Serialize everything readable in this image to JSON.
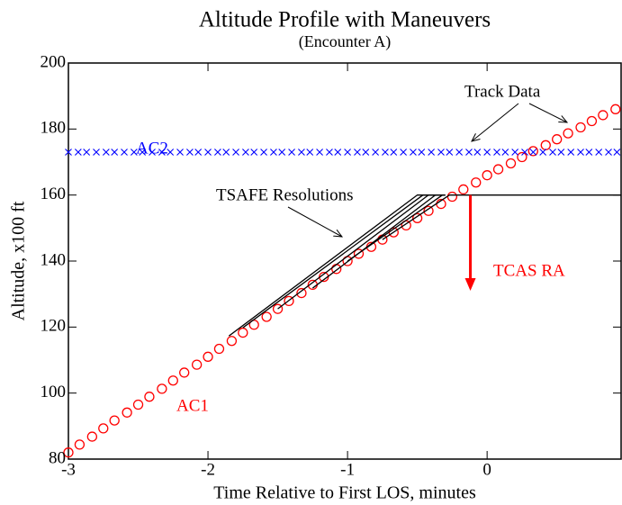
{
  "chart_data": {
    "type": "line",
    "title": "Altitude Profile with Maneuvers",
    "subtitle": "(Encounter A)",
    "x_label": "Time Relative to First LOS, minutes",
    "y_label": "Altitude, x100 ft",
    "xlim": [
      -3,
      0.96
    ],
    "ylim": [
      80,
      200
    ],
    "xticks": [
      -3,
      -2,
      -1,
      0
    ],
    "yticks": [
      80,
      100,
      120,
      140,
      160,
      180,
      200
    ],
    "annotations": {
      "ac1": "AC1",
      "ac2": "AC2",
      "tsafe": "TSAFE Resolutions",
      "track": "Track Data",
      "tcas": "TCAS RA"
    },
    "series": [
      {
        "name": "AC1",
        "color": "#ff0000",
        "marker": "circle",
        "x": [
          -3,
          -2.92,
          -2.83,
          -2.75,
          -2.67,
          -2.58,
          -2.5,
          -2.42,
          -2.33,
          -2.25,
          -2.17,
          -2.08,
          -2,
          -1.92,
          -1.83,
          -1.75,
          -1.67,
          -1.58,
          -1.5,
          -1.42,
          -1.33,
          -1.25,
          -1.17,
          -1.08,
          -1,
          -0.92,
          -0.83,
          -0.75,
          -0.67,
          -0.58,
          -0.5,
          -0.42,
          -0.33,
          -0.25,
          -0.17,
          -0.08,
          0,
          0.08,
          0.17,
          0.25,
          0.33,
          0.42,
          0.5,
          0.58,
          0.67,
          0.75,
          0.83,
          0.92
        ],
        "values": [
          82,
          84.4,
          86.8,
          89.3,
          91.7,
          94.1,
          96.5,
          98.9,
          101.3,
          103.8,
          106.2,
          108.6,
          111,
          113.4,
          115.8,
          118.3,
          120.7,
          123.1,
          125.5,
          127.9,
          130.3,
          132.8,
          135.2,
          137.6,
          140,
          142.2,
          144.3,
          146.5,
          148.7,
          150.8,
          153,
          155.2,
          157.3,
          159.5,
          161.7,
          163.8,
          166,
          167.8,
          169.6,
          171.5,
          173.3,
          175.1,
          176.9,
          178.7,
          180.5,
          182.4,
          184.2,
          186
        ]
      },
      {
        "name": "AC2",
        "color": "#0000ff",
        "marker": "x",
        "x": [
          -3,
          -2.93,
          -2.87,
          -2.8,
          -2.73,
          -2.67,
          -2.6,
          -2.53,
          -2.47,
          -2.4,
          -2.33,
          -2.27,
          -2.2,
          -2.13,
          -2.07,
          -2,
          -1.93,
          -1.87,
          -1.8,
          -1.73,
          -1.67,
          -1.6,
          -1.53,
          -1.47,
          -1.4,
          -1.33,
          -1.27,
          -1.2,
          -1.13,
          -1.07,
          -1,
          -0.93,
          -0.87,
          -0.8,
          -0.73,
          -0.67,
          -0.6,
          -0.53,
          -0.47,
          -0.4,
          -0.33,
          -0.27,
          -0.2,
          -0.13,
          -0.07,
          0,
          0.07,
          0.13,
          0.2,
          0.27,
          0.33,
          0.4,
          0.47,
          0.53,
          0.6,
          0.67,
          0.73,
          0.8,
          0.87,
          0.93
        ],
        "values": [
          173,
          173,
          173,
          173,
          173,
          173,
          173,
          173,
          173,
          173,
          173,
          173,
          173,
          173,
          173,
          173,
          173,
          173,
          173,
          173,
          173,
          173,
          173,
          173,
          173,
          173,
          173,
          173,
          173,
          173,
          173,
          173,
          173,
          173,
          173,
          173,
          173,
          173,
          173,
          173,
          173,
          173,
          173,
          173,
          173,
          173,
          173,
          173,
          173,
          173,
          173,
          173,
          173,
          173,
          173,
          173,
          173,
          173,
          173,
          173
        ]
      },
      {
        "name": "TSAFE 1",
        "color": "#000000",
        "marker": "line",
        "x": [
          -1.85,
          -0.5,
          -0.3
        ],
        "values": [
          117.3,
          160,
          160
        ]
      },
      {
        "name": "TSAFE 2",
        "color": "#000000",
        "marker": "line",
        "x": [
          -1.75,
          -0.46,
          -0.3
        ],
        "values": [
          119.8,
          160,
          160
        ]
      },
      {
        "name": "TSAFE 3",
        "color": "#000000",
        "marker": "line",
        "x": [
          -1.5,
          -0.42,
          -0.3
        ],
        "values": [
          125.5,
          160,
          160
        ]
      },
      {
        "name": "TSAFE 4",
        "color": "#000000",
        "marker": "line",
        "x": [
          -1.25,
          -0.37,
          -0.3
        ],
        "values": [
          131.8,
          160,
          160
        ]
      },
      {
        "name": "TSAFE 5",
        "color": "#000000",
        "marker": "line",
        "x": [
          -1,
          -0.32
        ],
        "values": [
          140,
          160
        ]
      },
      {
        "name": "TSAFE 6",
        "color": "#000000",
        "marker": "line",
        "x": [
          -0.75,
          -0.27,
          0.96
        ],
        "values": [
          146.5,
          160,
          160
        ]
      }
    ],
    "tcas_arrow": {
      "color": "#ff0000",
      "x": -0.12,
      "y": [
        160,
        131
      ]
    }
  }
}
